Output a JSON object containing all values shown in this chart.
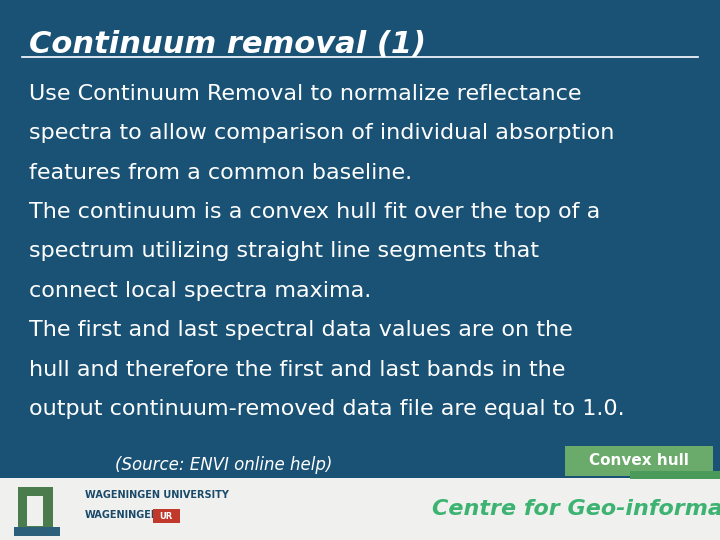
{
  "title": "Continuum removal (1)",
  "bg_color": "#1a5276",
  "footer_bg": "#f0f0ee",
  "title_color": "#ffffff",
  "title_underline_color": "#ffffff",
  "body_text_color": "#ffffff",
  "body_lines": [
    "Use Continuum Removal to normalize reflectance",
    "spectra to allow comparison of individual absorption",
    "features from a common baseline.",
    "The continuum is a convex hull fit over the top of a",
    "spectrum utilizing straight line segments that",
    "connect local spectra maxima.",
    "The first and last spectral data values are on the",
    "hull and therefore the first and last bands in the",
    "output continuum-removed data file are equal to 1.0."
  ],
  "source_text": "(Source: ENVI online help)",
  "source_color": "#ffffff",
  "convex_hull_text": "Convex hull",
  "convex_hull_bg": "#6aaa6a",
  "convex_hull_text_color": "#ffffff",
  "footer_text": "Centre for Geo-information",
  "footer_text_color": "#3cb371",
  "wur_text1": "WAGENINGEN UNIVERSITY",
  "wur_text_color": "#1a4a6a",
  "title_fontsize": 22,
  "body_fontsize": 16,
  "source_fontsize": 12,
  "footer_fontsize": 16
}
